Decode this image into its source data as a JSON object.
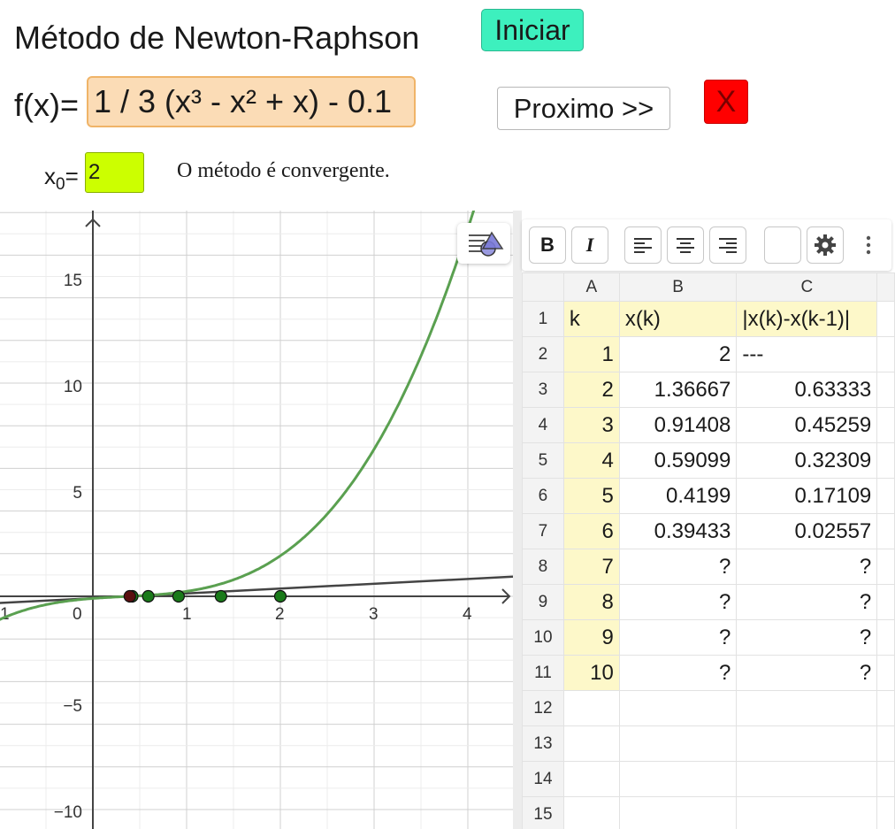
{
  "header": {
    "title": "Método de Newton-Raphson",
    "start_button": "Iniciar",
    "fx_label": "f(x)=",
    "fx_value": "1 / 3 (x³ - x² + x) - 0.1",
    "next_button": "Proximo >>",
    "close_button": "X",
    "x0_label": "x",
    "x0_sub": "0",
    "x0_eq": "=",
    "x0_value": "2",
    "status": "O método é convergente."
  },
  "graph": {
    "x_ticks": [
      "1",
      "0",
      "1",
      "2",
      "3",
      "4"
    ],
    "y_ticks": [
      "15",
      "10",
      "5",
      "−5",
      "−10"
    ],
    "curve_color": "#5aa050",
    "tangent_color": "#444444",
    "point_color": "#1a7a1a",
    "root_point_color": "#5a1010",
    "iterates": [
      2,
      1.36667,
      0.91408,
      0.59099,
      0.4199,
      0.39433
    ]
  },
  "toolbar": {
    "bold": "B",
    "italic": "I",
    "icons": [
      "align-left-icon",
      "align-center-icon",
      "align-right-icon",
      "color-swatch",
      "gear-icon",
      "more-vert-icon"
    ]
  },
  "sheet": {
    "columns": [
      "A",
      "B",
      "C"
    ],
    "rows": [
      {
        "n": "1",
        "a": "k",
        "b": "x(k)",
        "c": "|x(k)-x(k-1)|"
      },
      {
        "n": "2",
        "a": "1",
        "b": "2",
        "c": "---"
      },
      {
        "n": "3",
        "a": "2",
        "b": "1.36667",
        "c": "0.63333"
      },
      {
        "n": "4",
        "a": "3",
        "b": "0.91408",
        "c": "0.45259"
      },
      {
        "n": "5",
        "a": "4",
        "b": "0.59099",
        "c": "0.32309"
      },
      {
        "n": "6",
        "a": "5",
        "b": "0.4199",
        "c": "0.17109"
      },
      {
        "n": "7",
        "a": "6",
        "b": "0.39433",
        "c": "0.02557"
      },
      {
        "n": "8",
        "a": "7",
        "b": "?",
        "c": "?"
      },
      {
        "n": "9",
        "a": "8",
        "b": "?",
        "c": "?"
      },
      {
        "n": "10",
        "a": "9",
        "b": "?",
        "c": "?"
      },
      {
        "n": "11",
        "a": "10",
        "b": "?",
        "c": "?"
      },
      {
        "n": "12",
        "a": "",
        "b": "",
        "c": ""
      },
      {
        "n": "13",
        "a": "",
        "b": "",
        "c": ""
      },
      {
        "n": "14",
        "a": "",
        "b": "",
        "c": ""
      },
      {
        "n": "15",
        "a": "",
        "b": "",
        "c": ""
      }
    ]
  }
}
